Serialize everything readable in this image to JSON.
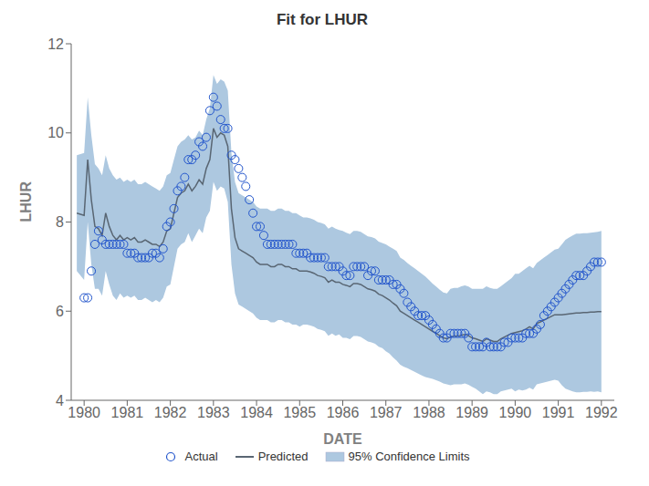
{
  "chart_data": {
    "type": "line",
    "title": "Fit for LHUR",
    "xlabel": "DATE",
    "ylabel": "LHUR",
    "xlim": [
      1979.7,
      1992.3
    ],
    "ylim": [
      4,
      12
    ],
    "xticks": [
      1980,
      1981,
      1982,
      1983,
      1984,
      1985,
      1986,
      1987,
      1988,
      1989,
      1990,
      1991,
      1992
    ],
    "yticks": [
      4,
      6,
      8,
      10,
      12
    ],
    "grid": false,
    "legend": "bottom",
    "series": [
      {
        "name": "Actual",
        "type": "scatter",
        "marker": "circle",
        "color": "#2255cc",
        "x": [
          1980.0,
          1980.083,
          1980.167,
          1980.25,
          1980.333,
          1980.417,
          1980.5,
          1980.583,
          1980.667,
          1980.75,
          1980.833,
          1980.917,
          1981.0,
          1981.083,
          1981.167,
          1981.25,
          1981.333,
          1981.417,
          1981.5,
          1981.583,
          1981.667,
          1981.75,
          1981.833,
          1981.917,
          1982.0,
          1982.083,
          1982.167,
          1982.25,
          1982.333,
          1982.417,
          1982.5,
          1982.583,
          1982.667,
          1982.75,
          1982.833,
          1982.917,
          1983.0,
          1983.083,
          1983.167,
          1983.25,
          1983.333,
          1983.417,
          1983.5,
          1983.583,
          1983.667,
          1983.75,
          1983.833,
          1983.917,
          1984.0,
          1984.083,
          1984.167,
          1984.25,
          1984.333,
          1984.417,
          1984.5,
          1984.583,
          1984.667,
          1984.75,
          1984.833,
          1984.917,
          1985.0,
          1985.083,
          1985.167,
          1985.25,
          1985.333,
          1985.417,
          1985.5,
          1985.583,
          1985.667,
          1985.75,
          1985.833,
          1985.917,
          1986.0,
          1986.083,
          1986.167,
          1986.25,
          1986.333,
          1986.417,
          1986.5,
          1986.583,
          1986.667,
          1986.75,
          1986.833,
          1986.917,
          1987.0,
          1987.083,
          1987.167,
          1987.25,
          1987.333,
          1987.417,
          1987.5,
          1987.583,
          1987.667,
          1987.75,
          1987.833,
          1987.917,
          1988.0,
          1988.083,
          1988.167,
          1988.25,
          1988.333,
          1988.417,
          1988.5,
          1988.583,
          1988.667,
          1988.75,
          1988.833,
          1988.917,
          1989.0,
          1989.083,
          1989.167,
          1989.25,
          1989.333,
          1989.417,
          1989.5,
          1989.583,
          1989.667,
          1989.75,
          1989.833,
          1989.917,
          1990.0,
          1990.083,
          1990.167,
          1990.25,
          1990.333,
          1990.417,
          1990.5,
          1990.583,
          1990.667,
          1990.75,
          1990.833,
          1990.917,
          1991.0,
          1991.083,
          1991.167,
          1991.25,
          1991.333,
          1991.417,
          1991.5,
          1991.583,
          1991.667,
          1991.75,
          1991.833,
          1991.917,
          1992.0
        ],
        "values": [
          6.3,
          6.3,
          6.9,
          7.5,
          7.8,
          7.6,
          7.5,
          7.5,
          7.5,
          7.5,
          7.5,
          7.5,
          7.3,
          7.3,
          7.3,
          7.2,
          7.2,
          7.2,
          7.2,
          7.3,
          7.3,
          7.2,
          7.4,
          7.9,
          8.0,
          8.3,
          8.7,
          8.8,
          9.0,
          9.4,
          9.4,
          9.5,
          9.8,
          9.7,
          9.9,
          10.5,
          10.8,
          10.6,
          10.3,
          10.1,
          10.1,
          9.5,
          9.4,
          9.2,
          9.0,
          8.8,
          8.5,
          8.2,
          7.9,
          7.9,
          7.7,
          7.5,
          7.5,
          7.5,
          7.5,
          7.5,
          7.5,
          7.5,
          7.5,
          7.3,
          7.3,
          7.3,
          7.3,
          7.2,
          7.2,
          7.2,
          7.2,
          7.2,
          7.0,
          7.0,
          7.0,
          7.0,
          6.9,
          6.8,
          6.8,
          7.0,
          7.0,
          7.0,
          7.0,
          6.8,
          6.9,
          6.9,
          6.7,
          6.7,
          6.7,
          6.7,
          6.6,
          6.6,
          6.5,
          6.4,
          6.2,
          6.1,
          6.0,
          5.9,
          5.9,
          5.9,
          5.8,
          5.7,
          5.6,
          5.5,
          5.4,
          5.4,
          5.5,
          5.5,
          5.5,
          5.5,
          5.5,
          5.4,
          5.2,
          5.2,
          5.2,
          5.2,
          5.3,
          5.2,
          5.2,
          5.2,
          5.2,
          5.3,
          5.3,
          5.4,
          5.4,
          5.4,
          5.4,
          5.5,
          5.5,
          5.5,
          5.6,
          5.7,
          5.9,
          6.0,
          6.1,
          6.2,
          6.3,
          6.4,
          6.5,
          6.6,
          6.7,
          6.8,
          6.8,
          6.8,
          6.9,
          7.0,
          7.1,
          7.1,
          7.1
        ]
      },
      {
        "name": "Predicted",
        "type": "line",
        "color": "#596673",
        "x": [
          1979.83,
          1980.0,
          1980.083,
          1980.167,
          1980.25,
          1980.333,
          1980.417,
          1980.5,
          1980.583,
          1980.667,
          1980.75,
          1980.833,
          1980.917,
          1981.0,
          1981.083,
          1981.167,
          1981.25,
          1981.333,
          1981.417,
          1981.5,
          1981.583,
          1981.667,
          1981.75,
          1981.833,
          1981.917,
          1982.0,
          1982.083,
          1982.167,
          1982.25,
          1982.333,
          1982.417,
          1982.5,
          1982.583,
          1982.667,
          1982.75,
          1982.833,
          1982.917,
          1983.0,
          1983.083,
          1983.167,
          1983.25,
          1983.333,
          1983.417,
          1983.5,
          1983.583,
          1983.667,
          1983.75,
          1983.833,
          1983.917,
          1984.0,
          1984.083,
          1984.167,
          1984.25,
          1984.333,
          1984.417,
          1984.5,
          1984.583,
          1984.667,
          1984.75,
          1984.833,
          1984.917,
          1985.0,
          1985.083,
          1985.167,
          1985.25,
          1985.333,
          1985.417,
          1985.5,
          1985.583,
          1985.667,
          1985.75,
          1985.833,
          1985.917,
          1986.0,
          1986.083,
          1986.167,
          1986.25,
          1986.333,
          1986.417,
          1986.5,
          1986.583,
          1986.667,
          1986.75,
          1986.833,
          1986.917,
          1987.0,
          1987.083,
          1987.167,
          1987.25,
          1987.333,
          1987.417,
          1987.5,
          1987.583,
          1987.667,
          1987.75,
          1987.833,
          1987.917,
          1988.0,
          1988.083,
          1988.167,
          1988.25,
          1988.333,
          1988.417,
          1988.5,
          1988.583,
          1988.667,
          1988.75,
          1988.833,
          1988.917,
          1989.0,
          1989.083,
          1989.167,
          1989.25,
          1989.333,
          1989.417,
          1989.5,
          1989.583,
          1989.667,
          1989.75,
          1989.833,
          1989.917,
          1990.0,
          1990.083,
          1990.167,
          1990.25,
          1990.333,
          1990.417,
          1990.5,
          1990.583,
          1990.667,
          1990.75,
          1990.833,
          1990.917,
          1991.0,
          1991.083,
          1991.167,
          1991.25,
          1991.333,
          1991.417,
          1991.5,
          1991.583,
          1991.667,
          1991.75,
          1991.833,
          1991.917,
          1992.0
        ],
        "values": [
          8.2,
          8.15,
          9.4,
          8.5,
          7.9,
          7.85,
          7.7,
          8.2,
          7.9,
          7.7,
          7.6,
          7.7,
          7.6,
          7.65,
          7.6,
          7.65,
          7.55,
          7.55,
          7.6,
          7.55,
          7.5,
          7.5,
          7.45,
          7.55,
          7.8,
          7.85,
          8.2,
          8.55,
          8.65,
          8.7,
          8.85,
          8.7,
          8.8,
          8.95,
          8.85,
          9.2,
          9.4,
          10.1,
          9.9,
          10.0,
          9.95,
          9.7,
          8.3,
          7.65,
          7.4,
          7.35,
          7.3,
          7.25,
          7.2,
          7.1,
          7.05,
          7.05,
          7.05,
          7.0,
          7.0,
          7.05,
          7.05,
          7.0,
          7.0,
          6.95,
          6.95,
          6.9,
          6.9,
          6.9,
          6.88,
          6.85,
          6.8,
          6.78,
          6.75,
          6.65,
          6.7,
          6.65,
          6.65,
          6.6,
          6.58,
          6.55,
          6.62,
          6.62,
          6.6,
          6.55,
          6.5,
          6.48,
          6.45,
          6.38,
          6.35,
          6.3,
          6.25,
          6.18,
          6.12,
          6.0,
          5.95,
          5.9,
          5.85,
          5.8,
          5.75,
          5.7,
          5.65,
          5.6,
          5.55,
          5.5,
          5.45,
          5.4,
          5.38,
          5.42,
          5.44,
          5.44,
          5.46,
          5.48,
          5.45,
          5.4,
          5.38,
          5.35,
          5.32,
          5.38,
          5.35,
          5.32,
          5.32,
          5.38,
          5.42,
          5.46,
          5.5,
          5.52,
          5.54,
          5.56,
          5.6,
          5.65,
          5.6,
          5.72,
          5.76,
          5.8,
          5.84,
          5.88,
          5.92,
          5.92,
          5.92,
          5.93,
          5.94,
          5.95,
          5.96,
          5.96,
          5.97,
          5.97,
          5.98,
          5.98,
          5.99,
          5.99
        ]
      },
      {
        "name": "95% Confidence Limits",
        "type": "band",
        "color": "#adc8e0",
        "x": [
          1979.83,
          1980.0,
          1980.083,
          1980.167,
          1980.25,
          1980.333,
          1980.417,
          1980.5,
          1980.583,
          1980.667,
          1980.75,
          1980.833,
          1980.917,
          1981.0,
          1981.083,
          1981.167,
          1981.25,
          1981.333,
          1981.417,
          1981.5,
          1981.583,
          1981.667,
          1981.75,
          1981.833,
          1981.917,
          1982.0,
          1982.083,
          1982.167,
          1982.25,
          1982.333,
          1982.417,
          1982.5,
          1982.583,
          1982.667,
          1982.75,
          1982.833,
          1982.917,
          1983.0,
          1983.083,
          1983.167,
          1983.25,
          1983.333,
          1983.417,
          1983.5,
          1983.583,
          1983.667,
          1983.75,
          1983.833,
          1983.917,
          1984.0,
          1984.083,
          1984.167,
          1984.25,
          1984.333,
          1984.417,
          1984.5,
          1984.583,
          1984.667,
          1984.75,
          1984.833,
          1984.917,
          1985.0,
          1985.083,
          1985.167,
          1985.25,
          1985.333,
          1985.417,
          1985.5,
          1985.583,
          1985.667,
          1985.75,
          1985.833,
          1985.917,
          1986.0,
          1986.083,
          1986.167,
          1986.25,
          1986.333,
          1986.417,
          1986.5,
          1986.583,
          1986.667,
          1986.75,
          1986.833,
          1986.917,
          1987.0,
          1987.083,
          1987.167,
          1987.25,
          1987.333,
          1987.417,
          1987.5,
          1987.583,
          1987.667,
          1987.75,
          1987.833,
          1987.917,
          1988.0,
          1988.083,
          1988.167,
          1988.25,
          1988.333,
          1988.417,
          1988.5,
          1988.583,
          1988.667,
          1988.75,
          1988.833,
          1988.917,
          1989.0,
          1989.083,
          1989.167,
          1989.25,
          1989.333,
          1989.417,
          1989.5,
          1989.583,
          1989.667,
          1989.75,
          1989.833,
          1989.917,
          1990.0,
          1990.083,
          1990.167,
          1990.25,
          1990.333,
          1990.417,
          1990.5,
          1990.583,
          1990.667,
          1990.75,
          1990.833,
          1990.917,
          1991.0,
          1991.083,
          1991.167,
          1991.25,
          1991.333,
          1991.417,
          1991.5,
          1991.583,
          1991.667,
          1991.75,
          1991.833,
          1991.917,
          1992.0
        ],
        "lower": [
          6.9,
          6.7,
          8.0,
          7.05,
          6.5,
          6.5,
          6.35,
          6.9,
          6.6,
          6.35,
          6.25,
          6.4,
          6.3,
          6.35,
          6.3,
          6.35,
          6.25,
          6.25,
          6.3,
          6.25,
          6.2,
          6.25,
          6.2,
          6.3,
          6.55,
          6.6,
          7.0,
          7.4,
          7.5,
          7.55,
          7.75,
          7.55,
          7.7,
          7.85,
          7.75,
          8.1,
          8.25,
          8.9,
          8.7,
          8.8,
          8.75,
          8.45,
          7.05,
          6.4,
          6.15,
          6.1,
          6.05,
          6.0,
          5.95,
          5.85,
          5.8,
          5.8,
          5.8,
          5.75,
          5.75,
          5.8,
          5.8,
          5.75,
          5.75,
          5.7,
          5.7,
          5.65,
          5.7,
          5.7,
          5.68,
          5.65,
          5.6,
          5.58,
          5.55,
          5.45,
          5.5,
          5.45,
          5.48,
          5.4,
          5.4,
          5.37,
          5.44,
          5.44,
          5.42,
          5.37,
          5.32,
          5.3,
          5.27,
          5.2,
          5.17,
          5.1,
          5.05,
          4.96,
          4.89,
          4.8,
          4.75,
          4.72,
          4.68,
          4.64,
          4.6,
          4.56,
          4.52,
          4.5,
          4.48,
          4.45,
          4.42,
          4.38,
          4.36,
          4.34,
          4.36,
          4.36,
          4.36,
          4.38,
          4.35,
          4.3,
          4.26,
          4.2,
          4.14,
          4.2,
          4.18,
          4.14,
          4.14,
          4.2,
          4.22,
          4.24,
          4.26,
          4.2,
          4.24,
          4.22,
          4.24,
          4.28,
          4.24,
          4.36,
          4.38,
          4.4,
          4.42,
          4.44,
          4.46,
          4.44,
          4.34,
          4.26,
          4.23,
          4.2,
          4.18,
          4.18,
          4.19,
          4.19,
          4.2,
          4.19,
          4.2,
          4.18
        ],
        "upper": [
          9.5,
          9.55,
          10.8,
          9.95,
          9.3,
          9.2,
          9.05,
          9.5,
          9.2,
          9.05,
          8.95,
          9.0,
          8.9,
          8.95,
          8.9,
          8.95,
          8.85,
          8.85,
          8.9,
          8.85,
          8.8,
          8.75,
          8.7,
          8.8,
          9.05,
          9.1,
          9.4,
          9.7,
          9.8,
          9.85,
          9.95,
          9.85,
          9.9,
          10.05,
          9.95,
          10.3,
          10.55,
          11.3,
          11.1,
          11.2,
          11.15,
          10.95,
          9.55,
          8.9,
          8.65,
          8.6,
          8.55,
          8.5,
          8.45,
          8.35,
          8.3,
          8.3,
          8.3,
          8.25,
          8.25,
          8.3,
          8.3,
          8.25,
          8.25,
          8.2,
          8.2,
          8.15,
          8.1,
          8.1,
          8.08,
          8.05,
          8.0,
          7.98,
          7.95,
          7.85,
          7.9,
          7.85,
          7.82,
          7.8,
          7.76,
          7.73,
          7.8,
          7.8,
          7.78,
          7.73,
          7.68,
          7.66,
          7.63,
          7.56,
          7.53,
          7.5,
          7.45,
          7.4,
          7.35,
          7.2,
          7.15,
          7.08,
          7.02,
          6.96,
          6.9,
          6.84,
          6.78,
          6.7,
          6.62,
          6.55,
          6.48,
          6.42,
          6.4,
          6.5,
          6.52,
          6.52,
          6.56,
          6.58,
          6.55,
          6.5,
          6.5,
          6.5,
          6.5,
          6.56,
          6.52,
          6.5,
          6.5,
          6.56,
          6.62,
          6.68,
          6.74,
          6.84,
          6.84,
          6.9,
          6.96,
          7.02,
          6.96,
          7.08,
          7.14,
          7.2,
          7.26,
          7.32,
          7.38,
          7.4,
          7.5,
          7.6,
          7.65,
          7.7,
          7.74,
          7.74,
          7.75,
          7.75,
          7.76,
          7.77,
          7.78,
          7.8
        ]
      }
    ]
  }
}
